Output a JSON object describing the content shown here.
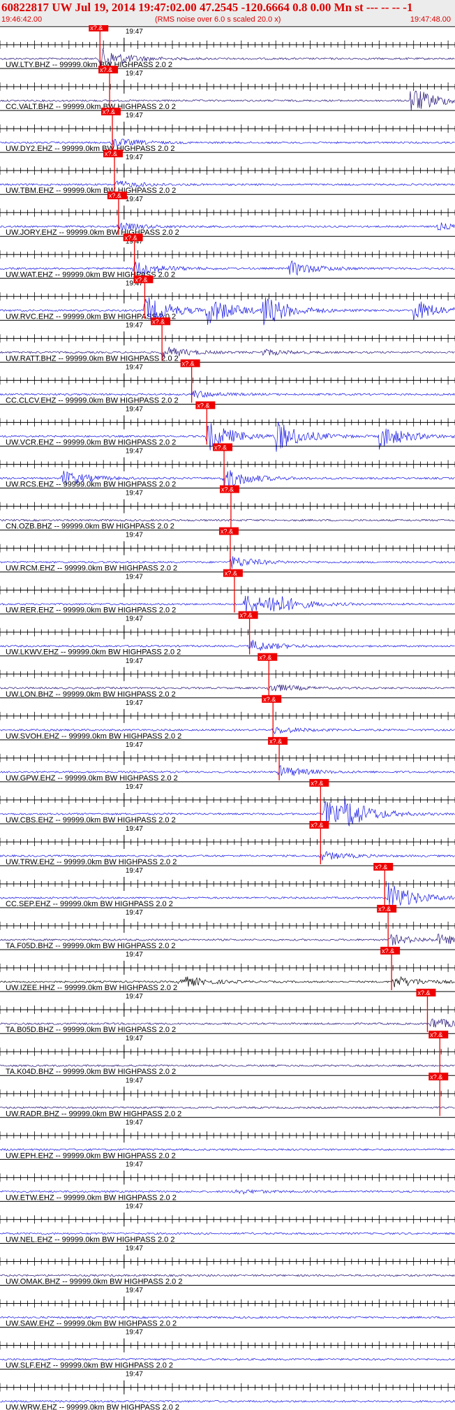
{
  "header": {
    "title": "60822817 UW Jul 19, 2014 19:47:02.00    47.2545 -120.6664  0.8 0.00 Mn st --- -- --   -1",
    "start_time": "19:46:42.00",
    "noise_note": "(RMS noise over 6.0 s scaled 20.0 x)",
    "end_time": "19:47:48.00"
  },
  "colors": {
    "header_bg": "#ececec",
    "title_red": "#dd0000",
    "pick_red": "#ee0000",
    "trace_blue": "#1414e6",
    "trace_navy": "#221177",
    "trace_black": "#000000"
  },
  "chart_data": {
    "type": "line",
    "title": "60822817 UW Jul 19, 2014 19:47:02.00    47.2545 -120.6664  0.8 0.00 Mn st --- -- --   -1",
    "time_range": [
      "19:46:42.00",
      "19:47:48.00"
    ],
    "xlim_seconds": [
      0,
      66
    ],
    "minute_tick_label": "19:47",
    "minute_tick_second": 18,
    "pick_label": "x?.&",
    "ticks_every_seconds": 1,
    "traces": [
      {
        "label": "UW.LTY.BHZ -- 99999.0km BW  HIGHPASS  2.0  2",
        "pick_s": 14.5,
        "color": "navy",
        "burst_s": 14.5,
        "burst_amp": 0.7,
        "bursts": []
      },
      {
        "label": "CC.VALT.BHZ -- 99999.0km BW  HIGHPASS  2.0  2",
        "pick_s": 15.9,
        "color": "navy",
        "burst_s": null,
        "burst_amp": 0,
        "bursts": [
          [
            59.5,
            0.9
          ]
        ]
      },
      {
        "label": "UW.DY2.EHZ -- 99999.0km BW  HIGHPASS  2.0  2",
        "pick_s": 16.3,
        "color": "blue",
        "burst_s": 16.3,
        "burst_amp": 0.3,
        "bursts": []
      },
      {
        "label": "UW.TBM.EHZ -- 99999.0km BW  HIGHPASS  2.0  2",
        "pick_s": 16.6,
        "color": "blue",
        "burst_s": 16.6,
        "burst_amp": 0.25,
        "bursts": []
      },
      {
        "label": "UW.JORY.EHZ -- 99999.0km BW  HIGHPASS  2.0  2",
        "pick_s": 17.2,
        "color": "blue",
        "burst_s": 17.2,
        "burst_amp": 0.25,
        "bursts": [
          [
            63.5,
            0.2
          ]
        ]
      },
      {
        "label": "UW.WAT.EHZ -- 99999.0km BW  HIGHPASS  2.0  2",
        "pick_s": 19.5,
        "color": "blue",
        "burst_s": 19.5,
        "burst_amp": 0.5,
        "bursts": [
          [
            42,
            0.5
          ]
        ]
      },
      {
        "label": "UW.RVC.EHZ -- 99999.0km BW  HIGHPASS  2.0  2",
        "pick_s": 21.0,
        "color": "blue",
        "burst_s": 21.0,
        "burst_amp": 1.0,
        "bursts": [
          [
            30,
            0.9
          ],
          [
            38,
            1.0
          ],
          [
            60,
            0.7
          ]
        ]
      },
      {
        "label": "UW.RATT.BHZ -- 99999.0km BW  HIGHPASS  2.0  2",
        "pick_s": 23.5,
        "color": "navy",
        "burst_s": 23.5,
        "burst_amp": 0.4,
        "bursts": [
          [
            38,
            0.2
          ]
        ]
      },
      {
        "label": "CC.CLCV.EHZ -- 99999.0km BW  HIGHPASS  2.0  2",
        "pick_s": 27.8,
        "color": "blue",
        "burst_s": 27.8,
        "burst_amp": 0.25,
        "bursts": []
      },
      {
        "label": "UW.VCR.EHZ -- 99999.0km BW  HIGHPASS  2.0  2",
        "pick_s": 30.0,
        "color": "blue",
        "burst_s": 30.0,
        "burst_amp": 1.0,
        "bursts": [
          [
            40,
            1.0
          ],
          [
            55,
            0.8
          ]
        ]
      },
      {
        "label": "UW.RCS.EHZ -- 99999.0km BW  HIGHPASS  2.0  2",
        "pick_s": 32.5,
        "color": "blue",
        "burst_s": 32.5,
        "burst_amp": 0.7,
        "bursts": [
          [
            9,
            0.5
          ]
        ]
      },
      {
        "label": "CN.OZB.BHZ -- 99999.0km BW  HIGHPASS  2.0  2",
        "pick_s": 33.5,
        "color": "navy",
        "burst_s": null,
        "burst_amp": 0,
        "bursts": []
      },
      {
        "label": "UW.RCM.EHZ -- 99999.0km BW  HIGHPASS  2.0  2",
        "pick_s": 33.4,
        "color": "blue",
        "burst_s": 33.4,
        "burst_amp": 0.4,
        "bursts": []
      },
      {
        "label": "UW.RER.EHZ -- 99999.0km BW  HIGHPASS  2.0  2",
        "pick_s": 34.0,
        "color": "blue",
        "burst_s": 35.5,
        "burst_amp": 0.7,
        "bursts": [
          [
            39,
            0.6
          ]
        ]
      },
      {
        "label": "UW.LKWV.EHZ -- 99999.0km BW  HIGHPASS  2.0  2",
        "pick_s": 36.2,
        "color": "blue",
        "burst_s": 36.2,
        "burst_amp": 0.4,
        "bursts": []
      },
      {
        "label": "UW.LON.BHZ -- 99999.0km BW  HIGHPASS  2.0  2",
        "pick_s": 39.0,
        "color": "navy",
        "burst_s": 39.0,
        "burst_amp": 0.3,
        "bursts": []
      },
      {
        "label": "UW.SVOH.EHZ -- 99999.0km BW  HIGHPASS  2.0  2",
        "pick_s": 39.6,
        "color": "blue",
        "burst_s": 39.6,
        "burst_amp": 0.25,
        "bursts": []
      },
      {
        "label": "UW.GPW.EHZ -- 99999.0km BW  HIGHPASS  2.0  2",
        "pick_s": 40.5,
        "color": "blue",
        "burst_s": 40.5,
        "burst_amp": 0.4,
        "bursts": []
      },
      {
        "label": "UW.CBS.EHZ -- 99999.0km BW  HIGHPASS  2.0  2",
        "pick_s": 46.5,
        "color": "blue",
        "burst_s": 47.0,
        "burst_amp": 0.9,
        "bursts": [
          [
            50,
            0.7
          ]
        ]
      },
      {
        "label": "UW.TRW.EHZ -- 99999.0km BW  HIGHPASS  2.0  2",
        "pick_s": 46.5,
        "color": "blue",
        "burst_s": 46.5,
        "burst_amp": 0.3,
        "bursts": []
      },
      {
        "label": "CC.SEP.EHZ -- 99999.0km BW  HIGHPASS  2.0  2",
        "pick_s": 55.8,
        "color": "blue",
        "burst_s": 56.3,
        "burst_amp": 1.0,
        "bursts": []
      },
      {
        "label": "TA.F05D.BHZ -- 99999.0km BW  HIGHPASS  2.0  2",
        "pick_s": 56.3,
        "color": "navy",
        "burst_s": 56.5,
        "burst_amp": 0.35,
        "bursts": [
          [
            63.5,
            0.3
          ]
        ]
      },
      {
        "label": "UW.IZEE.HHZ -- 99999.0km BW  HIGHPASS  2.0  2",
        "pick_s": 56.8,
        "color": "black",
        "burst_s": 57.0,
        "burst_amp": 0.4,
        "bursts": [
          [
            26,
            0.4
          ]
        ]
      },
      {
        "label": "TA.B05D.BHZ -- 99999.0km BW  HIGHPASS  2.0  2",
        "pick_s": 62.0,
        "color": "navy",
        "burst_s": 62.5,
        "burst_amp": 0.4,
        "bursts": []
      },
      {
        "label": "TA.K04D.BHZ -- 99999.0km BW  HIGHPASS  2.0  2",
        "pick_s": 63.8,
        "color": "navy",
        "burst_s": null,
        "burst_amp": 0,
        "bursts": []
      },
      {
        "label": "UW.RADR.BHZ -- 99999.0km BW  HIGHPASS  2.0  2",
        "pick_s": 63.8,
        "color": "navy",
        "burst_s": null,
        "burst_amp": 0,
        "bursts": []
      },
      {
        "label": "UW.EPH.EHZ -- 99999.0km BW  HIGHPASS  2.0  2",
        "pick_s": null,
        "color": "blue",
        "burst_s": null,
        "burst_amp": 0,
        "bursts": []
      },
      {
        "label": "UW.ETW.EHZ -- 99999.0km BW  HIGHPASS  2.0  2",
        "pick_s": null,
        "color": "blue",
        "burst_s": null,
        "burst_amp": 0,
        "bursts": [
          [
            34,
            0.15
          ]
        ]
      },
      {
        "label": "UW.NEL.EHZ -- 99999.0km BW  HIGHPASS  2.0  2",
        "pick_s": null,
        "color": "blue",
        "burst_s": null,
        "burst_amp": 0,
        "bursts": []
      },
      {
        "label": "UW.OMAK.BHZ -- 99999.0km BW  HIGHPASS  2.0  2",
        "pick_s": null,
        "color": "navy",
        "burst_s": null,
        "burst_amp": 0,
        "bursts": []
      },
      {
        "label": "UW.SAW.EHZ -- 99999.0km BW  HIGHPASS  2.0  2",
        "pick_s": null,
        "color": "blue",
        "burst_s": null,
        "burst_amp": 0,
        "bursts": []
      },
      {
        "label": "UW.SLF.EHZ -- 99999.0km BW  HIGHPASS  2.0  2",
        "pick_s": null,
        "color": "blue",
        "burst_s": null,
        "burst_amp": 0,
        "bursts": []
      },
      {
        "label": "UW.WRW.EHZ -- 99999.0km BW  HIGHPASS  2.0  2",
        "pick_s": null,
        "color": "blue",
        "burst_s": null,
        "burst_amp": 0,
        "bursts": []
      }
    ]
  }
}
